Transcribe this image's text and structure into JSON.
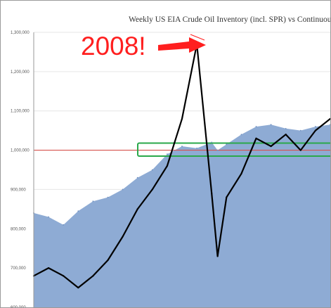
{
  "chart_data": {
    "type": "area",
    "title": "Weekly US EIA Crude Oil Inventory (incl. SPR) vs Continuous WT",
    "xlabel": "",
    "ylabel": "",
    "ylim": [
      600000,
      1300000
    ],
    "yticks": [
      600000,
      700000,
      800000,
      900000,
      1000000,
      1100000,
      1200000,
      1300000
    ],
    "ytick_labels": [
      "600,000",
      "700,000",
      "800,000",
      "900,000",
      "1,000,000",
      "1,100,000",
      "1,200,000",
      "1,300,000"
    ],
    "reference_line": {
      "value": 1000000,
      "color": "#d9534f"
    },
    "highlight_band": {
      "ymin": 985000,
      "ymax": 1018000,
      "color": "#2aa84a"
    },
    "annotation": {
      "text": "2008!",
      "color": "#ff1f1f"
    },
    "x_index": [
      0,
      0.05,
      0.1,
      0.15,
      0.2,
      0.25,
      0.3,
      0.35,
      0.4,
      0.45,
      0.5,
      0.55,
      0.6,
      0.62,
      0.65,
      0.7,
      0.75,
      0.8,
      0.85,
      0.9,
      0.95,
      1.0
    ],
    "series": [
      {
        "name": "",
        "color": "#8eabd4",
        "values": [
          840000,
          830000,
          810000,
          845000,
          870000,
          880000,
          900000,
          930000,
          950000,
          990000,
          1010000,
          1005000,
          1020000,
          1000000,
          1015000,
          1040000,
          1060000,
          1065000,
          1055000,
          1050000,
          1060000,
          1065000
        ]
      },
      {
        "name": "",
        "color": "#000000",
        "values": [
          680000,
          700000,
          680000,
          650000,
          680000,
          720000,
          780000,
          850000,
          900000,
          960000,
          1080000,
          1270000,
          890000,
          730000,
          880000,
          940000,
          1030000,
          1010000,
          1040000,
          1000000,
          1050000,
          1080000
        ]
      }
    ]
  }
}
